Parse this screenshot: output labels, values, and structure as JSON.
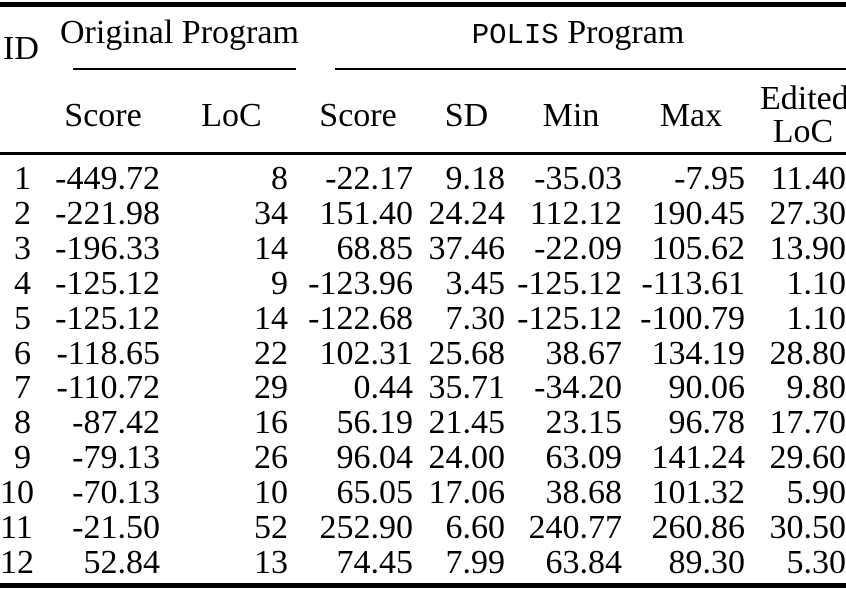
{
  "page": {
    "background_color": "#ffffff",
    "text_color": "#000000"
  },
  "table": {
    "id_header": "ID",
    "group_original": "Original Program",
    "group_polis": {
      "mono": "POLIS",
      "rest": "Program"
    },
    "columns": [
      "Score",
      "LoC",
      "Score",
      "SD",
      "Min",
      "Max"
    ],
    "edited_header": {
      "line1": "Edited",
      "line2": "LoC"
    },
    "rows": [
      {
        "id": "1",
        "orig_score": "-449.72",
        "orig_loc": "8",
        "score": "-22.17",
        "sd": "9.18",
        "min": "-35.03",
        "max": "-7.95",
        "edited_loc": "11.40"
      },
      {
        "id": "2",
        "orig_score": "-221.98",
        "orig_loc": "34",
        "score": "151.40",
        "sd": "24.24",
        "min": "112.12",
        "max": "190.45",
        "edited_loc": "27.30"
      },
      {
        "id": "3",
        "orig_score": "-196.33",
        "orig_loc": "14",
        "score": "68.85",
        "sd": "37.46",
        "min": "-22.09",
        "max": "105.62",
        "edited_loc": "13.90"
      },
      {
        "id": "4",
        "orig_score": "-125.12",
        "orig_loc": "9",
        "score": "-123.96",
        "sd": "3.45",
        "min": "-125.12",
        "max": "-113.61",
        "edited_loc": "1.10"
      },
      {
        "id": "5",
        "orig_score": "-125.12",
        "orig_loc": "14",
        "score": "-122.68",
        "sd": "7.30",
        "min": "-125.12",
        "max": "-100.79",
        "edited_loc": "1.10"
      },
      {
        "id": "6",
        "orig_score": "-118.65",
        "orig_loc": "22",
        "score": "102.31",
        "sd": "25.68",
        "min": "38.67",
        "max": "134.19",
        "edited_loc": "28.80"
      },
      {
        "id": "7",
        "orig_score": "-110.72",
        "orig_loc": "29",
        "score": "0.44",
        "sd": "35.71",
        "min": "-34.20",
        "max": "90.06",
        "edited_loc": "9.80"
      },
      {
        "id": "8",
        "orig_score": "-87.42",
        "orig_loc": "16",
        "score": "56.19",
        "sd": "21.45",
        "min": "23.15",
        "max": "96.78",
        "edited_loc": "17.70"
      },
      {
        "id": "9",
        "orig_score": "-79.13",
        "orig_loc": "26",
        "score": "96.04",
        "sd": "24.00",
        "min": "63.09",
        "max": "141.24",
        "edited_loc": "29.60"
      },
      {
        "id": "10",
        "orig_score": "-70.13",
        "orig_loc": "10",
        "score": "65.05",
        "sd": "17.06",
        "min": "38.68",
        "max": "101.32",
        "edited_loc": "5.90"
      },
      {
        "id": "11",
        "orig_score": "-21.50",
        "orig_loc": "52",
        "score": "252.90",
        "sd": "6.60",
        "min": "240.77",
        "max": "260.86",
        "edited_loc": "30.50"
      },
      {
        "id": "12",
        "orig_score": "52.84",
        "orig_loc": "13",
        "score": "74.45",
        "sd": "7.99",
        "min": "63.84",
        "max": "89.30",
        "edited_loc": "5.30"
      }
    ]
  }
}
